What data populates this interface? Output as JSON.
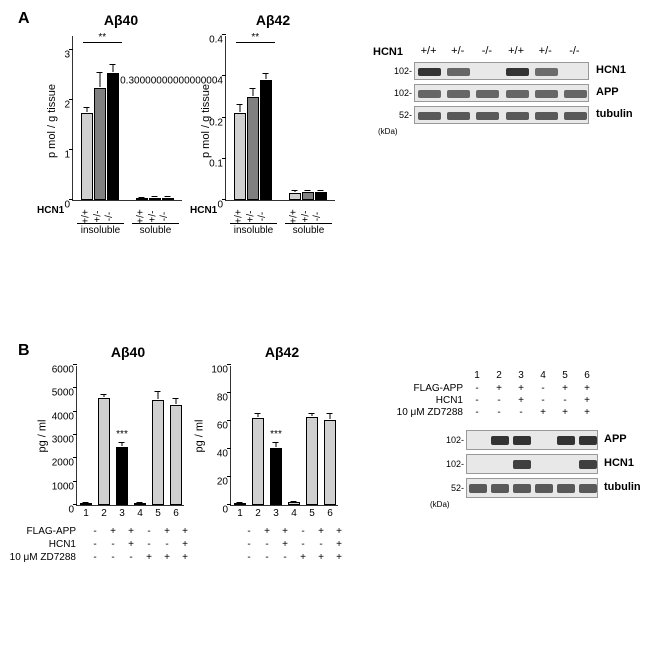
{
  "panelA": {
    "label": "A",
    "ab40": {
      "title": "Aβ40",
      "type": "bar",
      "ylabel": "p mol / g tissue",
      "ymax": 3.3,
      "ytick_step": 1,
      "groups": [
        "insoluble",
        "soluble"
      ],
      "categories": [
        "+/+",
        "+/-",
        "-/-"
      ],
      "values": [
        [
          1.75,
          2.25,
          2.55
        ],
        [
          0.04,
          0.05,
          0.05
        ]
      ],
      "errors": [
        [
          0.1,
          0.3,
          0.15
        ],
        [
          0.01,
          0.01,
          0.01
        ]
      ],
      "bar_colors": [
        "#d0d0d0",
        "#808080",
        "#000000"
      ],
      "sig": "**"
    },
    "ab42": {
      "title": "Aβ42",
      "type": "bar",
      "ylabel": "p mol / g tissue",
      "ymax": 0.4,
      "ytick_step": 0.1,
      "groups": [
        "insoluble",
        "soluble"
      ],
      "categories": [
        "+/+",
        "+/-",
        "-/-"
      ],
      "values": [
        [
          0.21,
          0.25,
          0.29
        ],
        [
          0.018,
          0.02,
          0.019
        ]
      ],
      "errors": [
        [
          0.02,
          0.02,
          0.015
        ],
        [
          0.003,
          0.003,
          0.003
        ]
      ],
      "bar_colors": [
        "#d0d0d0",
        "#808080",
        "#000000"
      ],
      "sig": "**"
    },
    "blot": {
      "header": "HCN1",
      "genotypes": [
        "+/+",
        "+/-",
        "-/-",
        "+/+",
        "+/-",
        "-/-"
      ],
      "rows": [
        {
          "label": "HCN1",
          "mw": "102-",
          "intensity": [
            1,
            0.6,
            0,
            1,
            0.55,
            0
          ]
        },
        {
          "label": "APP",
          "mw": "102-",
          "intensity": [
            0.6,
            0.6,
            0.6,
            0.6,
            0.6,
            0.6
          ]
        },
        {
          "label": "tubulin",
          "mw": "52-",
          "intensity": [
            0.7,
            0.7,
            0.7,
            0.7,
            0.7,
            0.7
          ]
        }
      ],
      "mw_unit": "(kDa)"
    }
  },
  "panelB": {
    "label": "B",
    "ab40": {
      "title": "Aβ40",
      "type": "bar",
      "ylabel": "pg / ml",
      "ymax": 6000,
      "ytick_step": 1000,
      "lanes": [
        1,
        2,
        3,
        4,
        5,
        6
      ],
      "values": [
        60,
        4600,
        2500,
        60,
        4500,
        4300
      ],
      "errors": [
        20,
        120,
        150,
        20,
        350,
        250
      ],
      "bar_colors": [
        "#d0d0d0",
        "#d0d0d0",
        "#000000",
        "#d0d0d0",
        "#d0d0d0",
        "#d0d0d0"
      ],
      "sig": "***",
      "sig_lane": 3
    },
    "ab42": {
      "title": "Aβ42",
      "type": "bar",
      "ylabel": "pg / ml",
      "ymax": 100,
      "ytick_step": 20,
      "lanes": [
        1,
        2,
        3,
        4,
        5,
        6
      ],
      "values": [
        1,
        62,
        41,
        2,
        63,
        61
      ],
      "errors": [
        0.5,
        3,
        3,
        0.5,
        2,
        4
      ],
      "bar_colors": [
        "#d0d0d0",
        "#d0d0d0",
        "#000000",
        "#d0d0d0",
        "#d0d0d0",
        "#d0d0d0"
      ],
      "sig": "***",
      "sig_lane": 3
    },
    "conditions": {
      "rows": [
        {
          "label": "FLAG-APP",
          "vals": [
            "-",
            "+",
            "+",
            "-",
            "+",
            "+"
          ]
        },
        {
          "label": "HCN1",
          "vals": [
            "-",
            "-",
            "+",
            "-",
            "-",
            "+"
          ]
        },
        {
          "label": "10 μM ZD7288",
          "vals": [
            "-",
            "-",
            "-",
            "+",
            "+",
            "+"
          ]
        }
      ]
    },
    "blot": {
      "lane_numbers": [
        1,
        2,
        3,
        4,
        5,
        6
      ],
      "cond_rows": [
        {
          "label": "FLAG-APP",
          "vals": [
            "-",
            "+",
            "+",
            "-",
            "+",
            "+"
          ]
        },
        {
          "label": "HCN1",
          "vals": [
            "-",
            "-",
            "+",
            "-",
            "-",
            "+"
          ]
        },
        {
          "label": "10 μM ZD7288",
          "vals": [
            "-",
            "-",
            "-",
            "+",
            "+",
            "+"
          ]
        }
      ],
      "rows": [
        {
          "label": "APP",
          "mw": "102-",
          "intensity": [
            0,
            1,
            1,
            0,
            1,
            1
          ]
        },
        {
          "label": "HCN1",
          "mw": "102-",
          "intensity": [
            0,
            0,
            0.9,
            0,
            0,
            0.9
          ]
        },
        {
          "label": "tubulin",
          "mw": "52-",
          "intensity": [
            0.7,
            0.7,
            0.7,
            0.7,
            0.7,
            0.7
          ]
        }
      ],
      "mw_unit": "(kDa)"
    }
  }
}
